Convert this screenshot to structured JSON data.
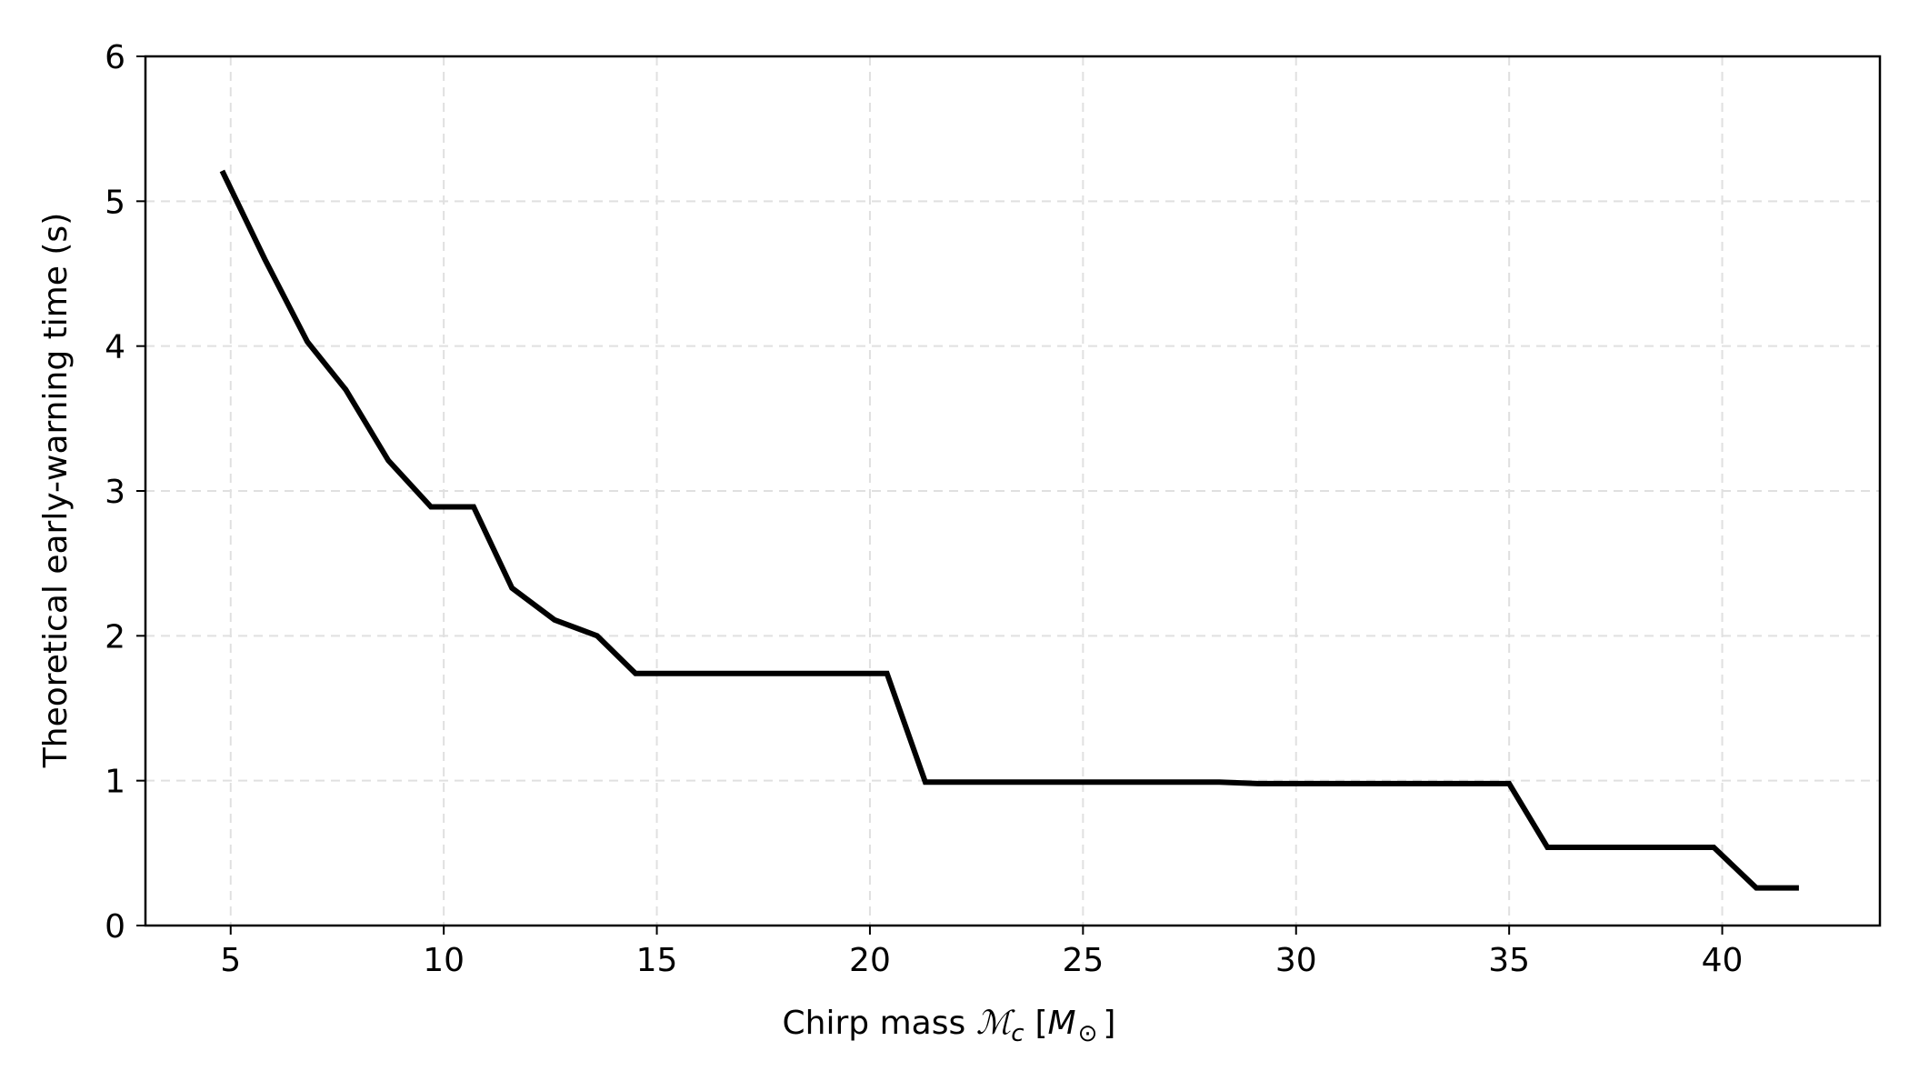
{
  "chart_data": {
    "type": "line",
    "title": "",
    "xlabel": "Chirp mass ℳ_c [M_⊙]",
    "xlabel_parts": {
      "prefix": "Chirp mass ",
      "symbol": "ℳ",
      "symbol_sub": "c",
      "bracket_open": "[",
      "unit": "M",
      "unit_sub": "⊙",
      "bracket_close": "]"
    },
    "ylabel": "Theoretical early-warning time (s)",
    "xlim": [
      3,
      43.7
    ],
    "ylim": [
      0,
      6
    ],
    "xticks": [
      5,
      10,
      15,
      20,
      25,
      30,
      35,
      40
    ],
    "yticks": [
      0,
      1,
      2,
      3,
      4,
      5,
      6
    ],
    "grid": true,
    "legend": "none",
    "series": [
      {
        "color": "#000000",
        "x": [
          4.8,
          5.8,
          6.8,
          7.7,
          8.7,
          9.7,
          10.7,
          11.6,
          12.6,
          13.6,
          14.5,
          15.5,
          16.5,
          17.5,
          18.4,
          19.4,
          20.4,
          21.3,
          22.3,
          23.3,
          24.3,
          25.2,
          26.2,
          27.2,
          28.2,
          29.1,
          30.1,
          31.1,
          32.1,
          33.0,
          34.0,
          35.0,
          35.9,
          36.9,
          37.9,
          38.9,
          39.8,
          40.8,
          41.8
        ],
        "values": [
          5.21,
          4.6,
          4.03,
          3.7,
          3.21,
          2.89,
          2.89,
          2.33,
          2.11,
          2.0,
          1.74,
          1.74,
          1.74,
          1.74,
          1.74,
          1.74,
          1.74,
          0.99,
          0.99,
          0.99,
          0.99,
          0.99,
          0.99,
          0.99,
          0.99,
          0.98,
          0.98,
          0.98,
          0.98,
          0.98,
          0.98,
          0.98,
          0.54,
          0.54,
          0.54,
          0.54,
          0.54,
          0.26,
          0.26
        ]
      }
    ]
  }
}
